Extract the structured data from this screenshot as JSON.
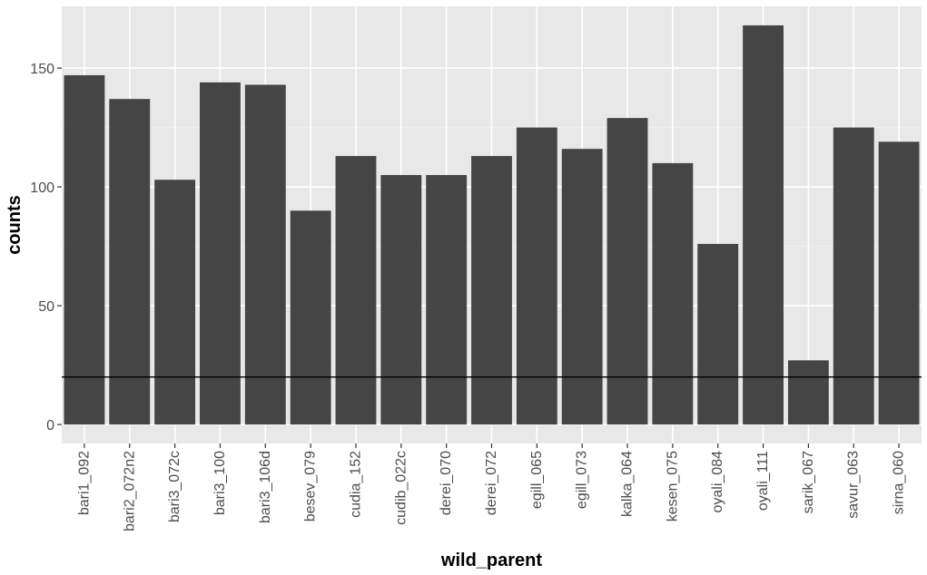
{
  "chart_data": {
    "type": "bar",
    "title": "",
    "xlabel": "wild_parent",
    "ylabel": "counts",
    "categories": [
      "bari1_092",
      "bari2_072n2",
      "bari3_072c",
      "bari3_100",
      "bari3_106d",
      "besev_079",
      "cudia_152",
      "cudib_022c",
      "derei_070",
      "derei_072",
      "egill_065",
      "egill_073",
      "kalka_064",
      "kesen_075",
      "oyali_084",
      "oyali_111",
      "sarik_067",
      "savur_063",
      "sirna_060"
    ],
    "values": [
      147,
      137,
      103,
      144,
      143,
      90,
      113,
      105,
      105,
      113,
      125,
      116,
      129,
      110,
      76,
      168,
      27,
      125,
      119
    ],
    "ylim": [
      -8,
      176
    ],
    "yticks": [
      0,
      50,
      100,
      150
    ],
    "hline": 20,
    "grid": true,
    "colors": {
      "panel_background": "#e8e8e8",
      "grid_major": "#ffffff",
      "grid_minor": "#f2f2f2",
      "bar_fill": "#454545",
      "hline": "#000000",
      "tick_text": "#4d4d4d",
      "axis_title": "#000000"
    }
  }
}
